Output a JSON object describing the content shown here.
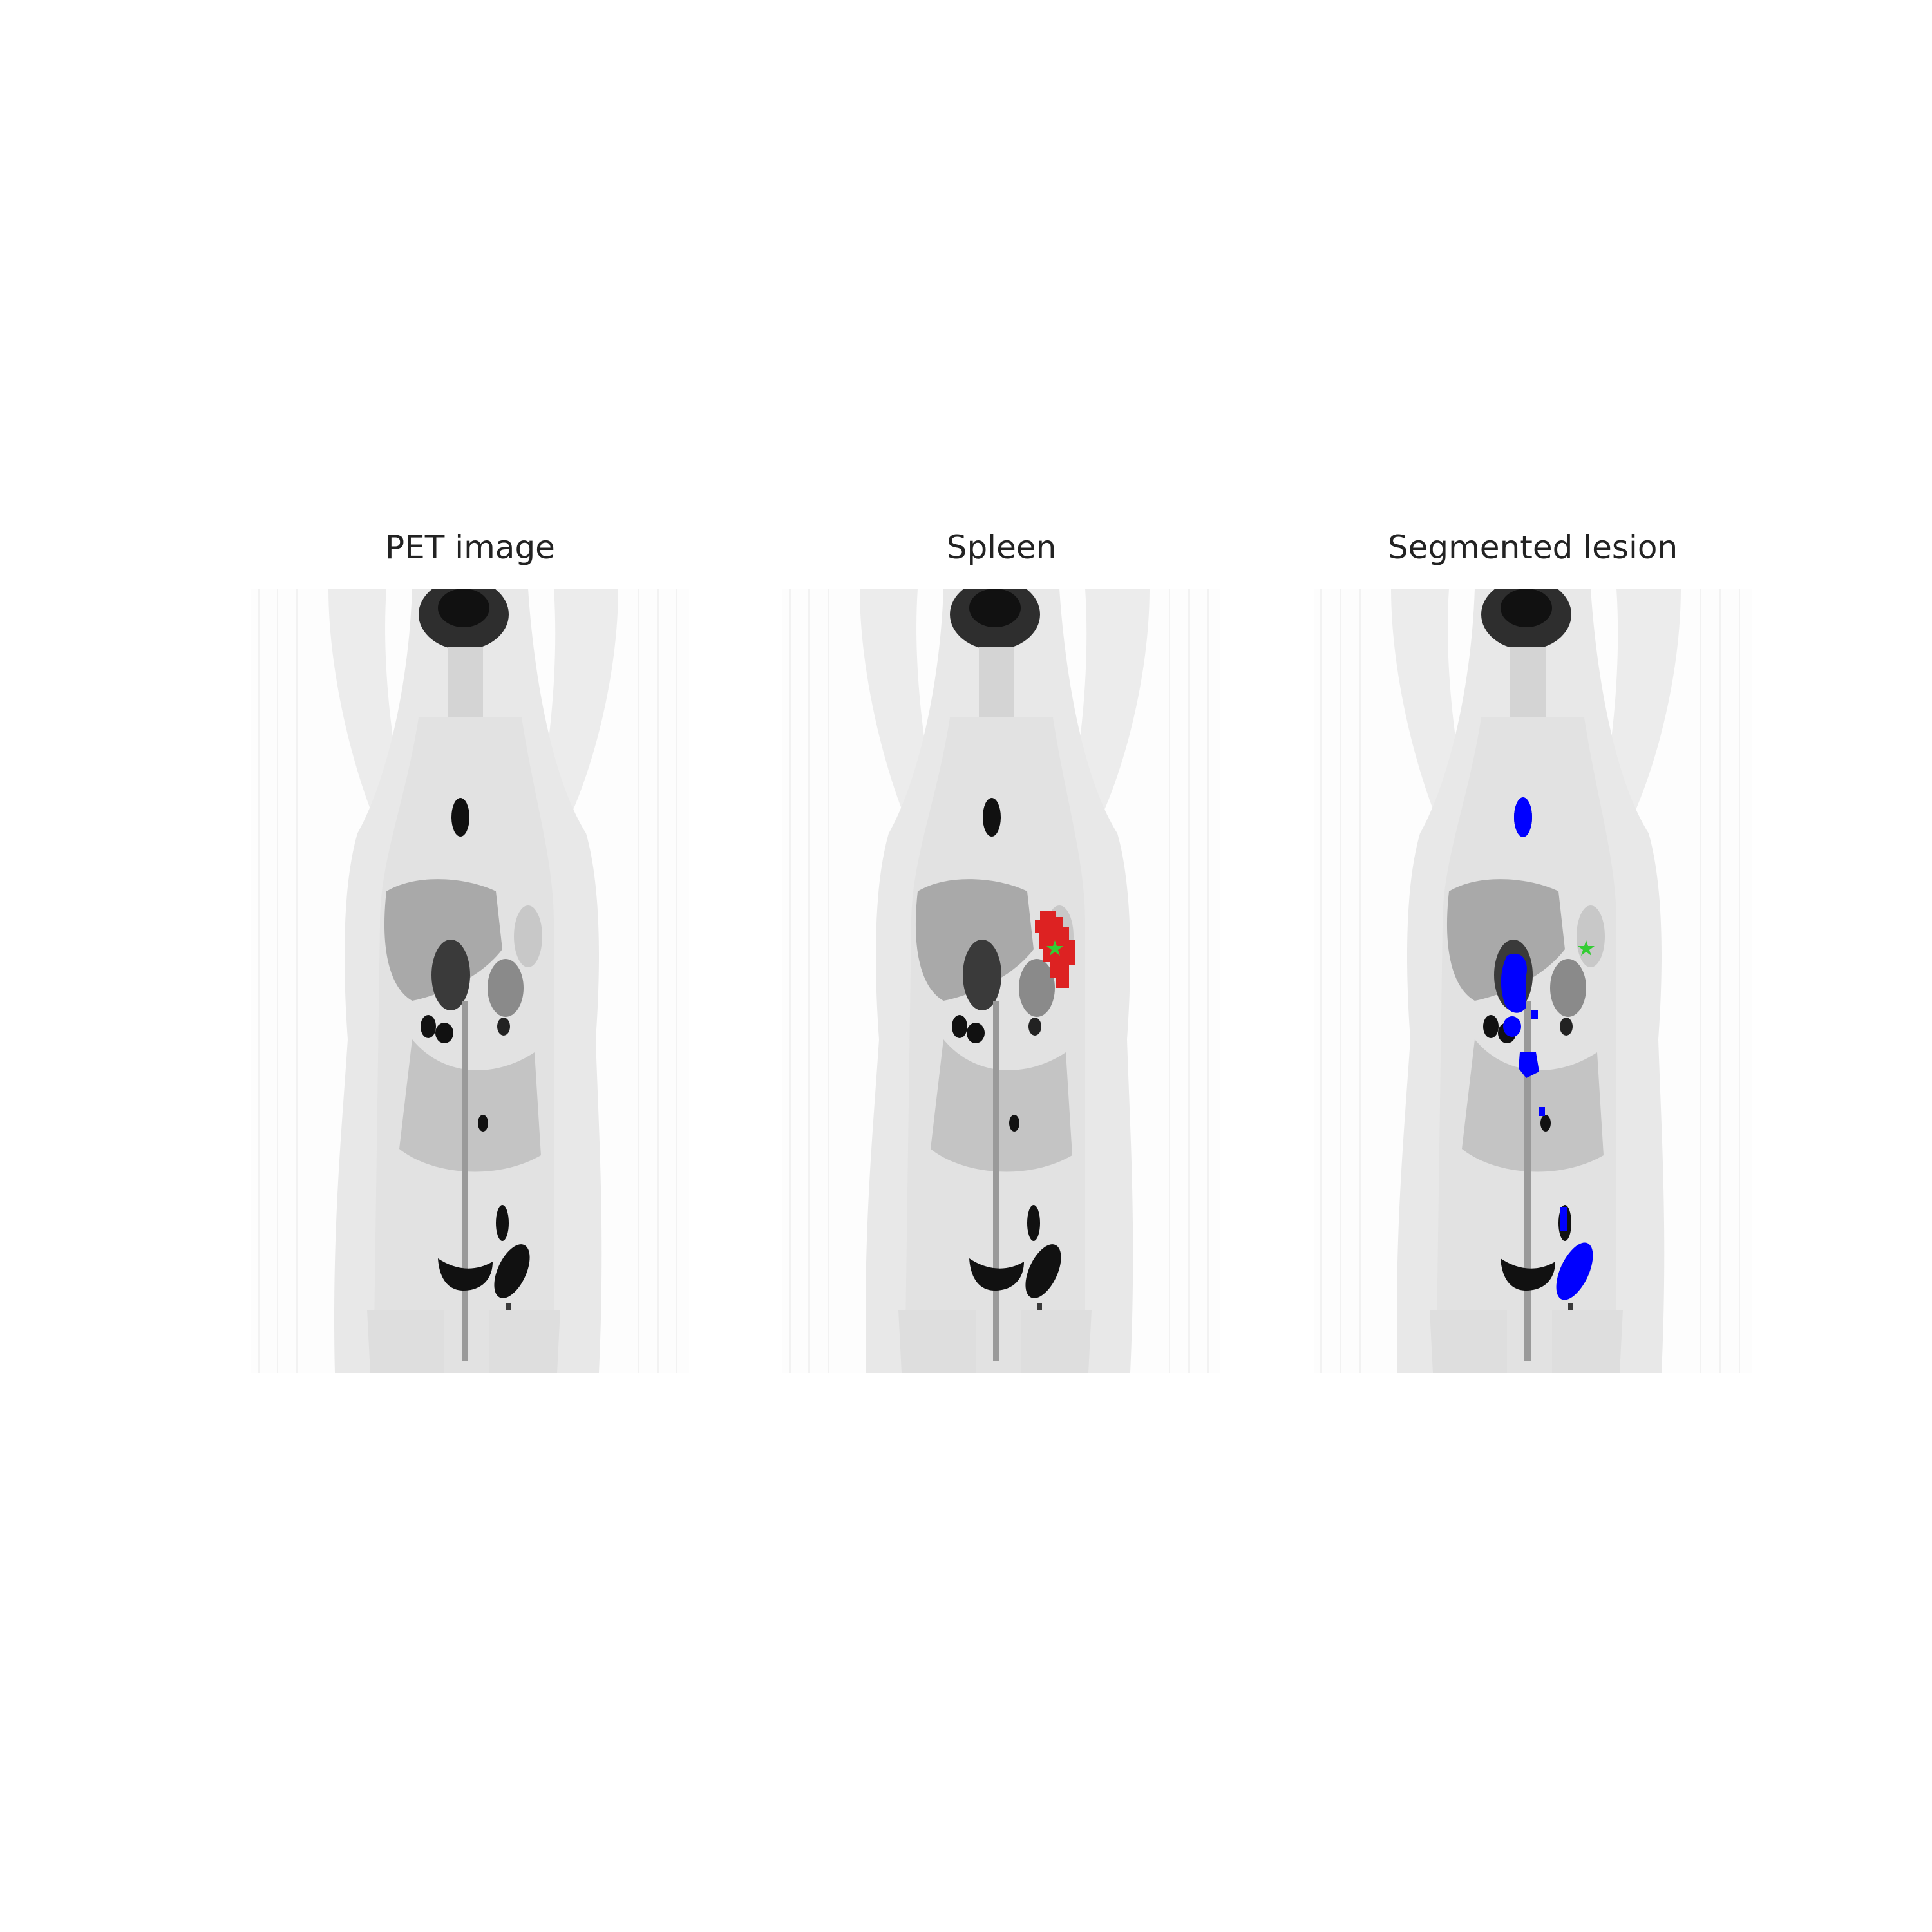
{
  "figure": {
    "panels": [
      {
        "title": "PET image"
      },
      {
        "title": "Spleen",
        "overlay_color": "#dd2222",
        "marker_color": "#33cc33"
      },
      {
        "title": "Segmented lesion",
        "overlay_color": "#0000ff",
        "marker_color": "#33cc33"
      }
    ]
  }
}
